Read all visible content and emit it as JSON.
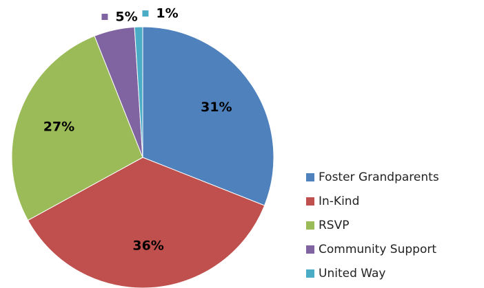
{
  "chart_data": {
    "type": "pie",
    "categories": [
      "Foster Grandparents",
      "In-Kind",
      "RSVP",
      "Community Support",
      "United Way"
    ],
    "values": [
      31,
      36,
      27,
      5,
      1
    ],
    "value_labels": [
      "31%",
      "36%",
      "27%",
      "5%",
      "1%"
    ],
    "colors": [
      "#4f81bd",
      "#c0504d",
      "#9bbb59",
      "#8064a2",
      "#4bacc6"
    ],
    "legend": "right"
  }
}
